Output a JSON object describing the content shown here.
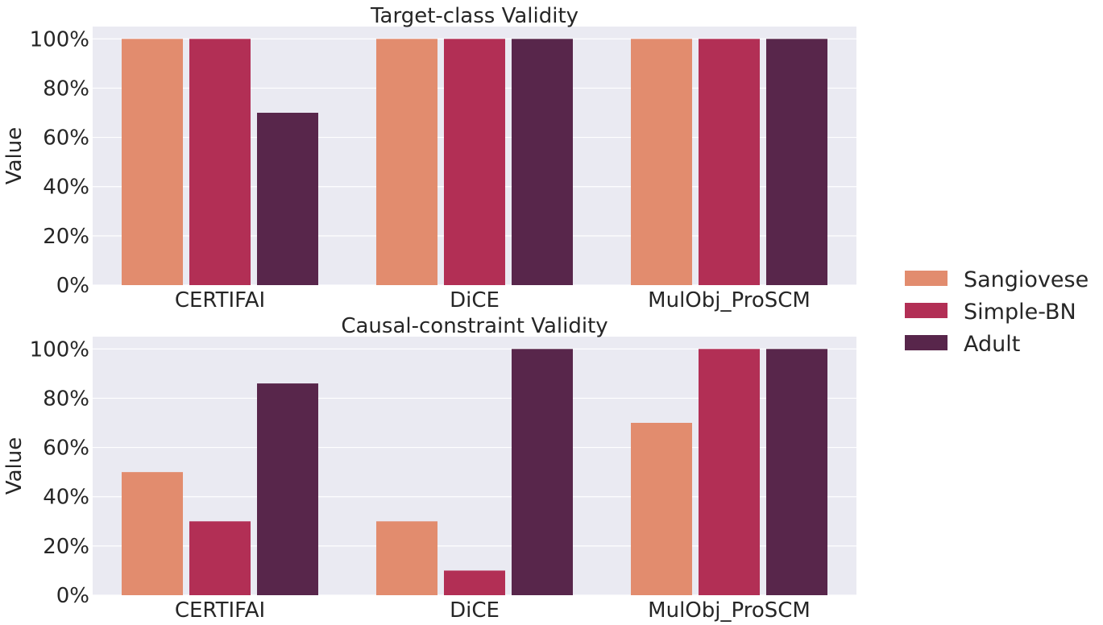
{
  "chart_data": [
    {
      "type": "bar",
      "title": "Target-class Validity",
      "ylabel": "Value",
      "categories": [
        "CERTIFAI",
        "DiCE",
        "MulObj_ProSCM"
      ],
      "yticks": [
        "0%",
        "20%",
        "40%",
        "60%",
        "80%",
        "100%"
      ],
      "ylim": [
        0,
        100
      ],
      "series": [
        {
          "name": "Sangiovese",
          "values": [
            100,
            100,
            100
          ]
        },
        {
          "name": "Simple-BN",
          "values": [
            100,
            100,
            100
          ]
        },
        {
          "name": "Adult",
          "values": [
            70,
            100,
            100
          ]
        }
      ],
      "grid": true
    },
    {
      "type": "bar",
      "title": "Causal-constraint Validity",
      "ylabel": "Value",
      "categories": [
        "CERTIFAI",
        "DiCE",
        "MulObj_ProSCM"
      ],
      "yticks": [
        "0%",
        "20%",
        "40%",
        "60%",
        "80%",
        "100%"
      ],
      "ylim": [
        0,
        100
      ],
      "series": [
        {
          "name": "Sangiovese",
          "values": [
            50,
            30,
            70
          ]
        },
        {
          "name": "Simple-BN",
          "values": [
            30,
            10,
            100
          ]
        },
        {
          "name": "Adult",
          "values": [
            86,
            100,
            100
          ]
        }
      ],
      "grid": true
    }
  ],
  "legend": {
    "placement": "right",
    "entries": [
      "Sangiovese",
      "Simple-BN",
      "Adult"
    ]
  },
  "colors": {
    "Sangiovese": "#e28c6e",
    "Simple-BN": "#b22f55",
    "Adult": "#58264b",
    "panel": "#eaeaf2",
    "grid": "#ffffff"
  }
}
